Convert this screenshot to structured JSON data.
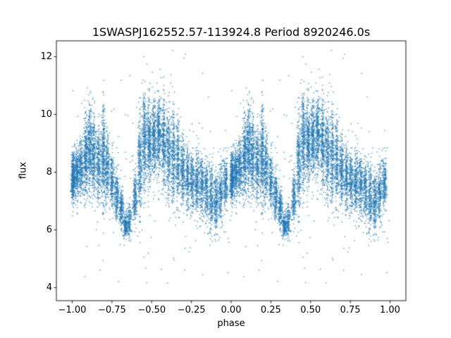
{
  "chart_data": {
    "type": "scatter",
    "title": "1SWASPJ162552.57-113924.8 Period 8920246.0s",
    "xlabel": "phase",
    "ylabel": "flux",
    "xlim": [
      -1.1,
      1.1
    ],
    "ylim": [
      3.55,
      12.55
    ],
    "xtick_values": [
      -1.0,
      -0.75,
      -0.5,
      -0.25,
      0.0,
      0.25,
      0.5,
      0.75,
      1.0
    ],
    "xtick_labels": [
      "−1.00",
      "−0.75",
      "−0.50",
      "−0.25",
      "0.00",
      "0.25",
      "0.50",
      "0.75",
      "1.00"
    ],
    "ytick_values": [
      4,
      6,
      8,
      10,
      12
    ],
    "ytick_labels": [
      "4",
      "6",
      "8",
      "10",
      "12"
    ],
    "grid": false,
    "legend": "none",
    "marker_color": "#1f77b4",
    "marker_size": 1.4,
    "marker_alpha": 0.8,
    "seed": 42,
    "x_jitter_std": 0.007,
    "duplicate_offsets": [
      0,
      -1
    ],
    "note": "Dense phase-folded light curve; each phase cluster is plotted twice, at phase p and p-1, covering -1.0 to 1.0. Clusters summarized as [phase, flux_mean, flux_std, n_points].",
    "cluster_fields": [
      "phase",
      "flux_mean",
      "flux_std",
      "n"
    ],
    "clusters": [
      [
        0.005,
        7.8,
        0.4,
        420
      ],
      [
        0.03,
        8.0,
        0.45,
        260
      ],
      [
        0.055,
        8.15,
        0.5,
        240
      ],
      [
        0.085,
        8.5,
        0.7,
        320
      ],
      [
        0.11,
        8.9,
        0.75,
        330
      ],
      [
        0.135,
        8.6,
        0.65,
        280
      ],
      [
        0.165,
        8.3,
        0.6,
        260
      ],
      [
        0.195,
        8.6,
        0.85,
        340
      ],
      [
        0.22,
        8.1,
        0.55,
        240
      ],
      [
        0.25,
        7.7,
        0.5,
        220
      ],
      [
        0.28,
        7.2,
        0.4,
        230
      ],
      [
        0.31,
        6.7,
        0.35,
        200
      ],
      [
        0.335,
        6.2,
        0.22,
        190
      ],
      [
        0.36,
        6.3,
        0.28,
        140
      ],
      [
        0.395,
        7.1,
        0.45,
        210
      ],
      [
        0.425,
        8.3,
        0.8,
        300
      ],
      [
        0.455,
        9.1,
        0.85,
        340
      ],
      [
        0.485,
        9.0,
        0.75,
        330
      ],
      [
        0.515,
        9.2,
        0.7,
        320
      ],
      [
        0.545,
        9.3,
        0.65,
        310
      ],
      [
        0.575,
        9.0,
        0.75,
        300
      ],
      [
        0.605,
        8.7,
        0.75,
        290
      ],
      [
        0.635,
        8.5,
        0.8,
        270
      ],
      [
        0.665,
        8.3,
        0.7,
        250
      ],
      [
        0.695,
        8.1,
        0.6,
        260
      ],
      [
        0.725,
        7.9,
        0.55,
        240
      ],
      [
        0.755,
        7.7,
        0.5,
        230
      ],
      [
        0.785,
        7.6,
        0.55,
        250
      ],
      [
        0.815,
        7.5,
        0.5,
        230
      ],
      [
        0.845,
        7.3,
        0.5,
        220
      ],
      [
        0.875,
        7.1,
        0.55,
        230
      ],
      [
        0.905,
        7.0,
        0.55,
        240
      ],
      [
        0.935,
        7.3,
        0.5,
        210
      ],
      [
        0.965,
        7.6,
        0.45,
        230
      ]
    ],
    "background_scatter": {
      "n": 220,
      "flux_mean": 7.9,
      "flux_std": 1.4,
      "flux_min": 4.6,
      "flux_max": 11.4
    },
    "outlier_fields": [
      "phase",
      "flux"
    ],
    "outliers_top": [
      [
        0.455,
        12.0
      ],
      [
        0.465,
        11.7
      ],
      [
        0.55,
        11.55
      ],
      [
        0.64,
        12.1
      ],
      [
        0.695,
        11.9
      ],
      [
        0.71,
        12.05
      ],
      [
        0.82,
        11.5
      ],
      [
        0.63,
        11.3
      ]
    ],
    "outliers_bottom": [
      [
        0.08,
        4.35
      ],
      [
        0.3,
        4.25
      ],
      [
        0.47,
        4.2
      ],
      [
        0.6,
        4.15
      ],
      [
        0.82,
        4.5
      ],
      [
        0.98,
        4.4
      ],
      [
        0.2,
        5.0
      ],
      [
        0.64,
        5.1
      ],
      [
        0.88,
        5.6
      ]
    ]
  }
}
